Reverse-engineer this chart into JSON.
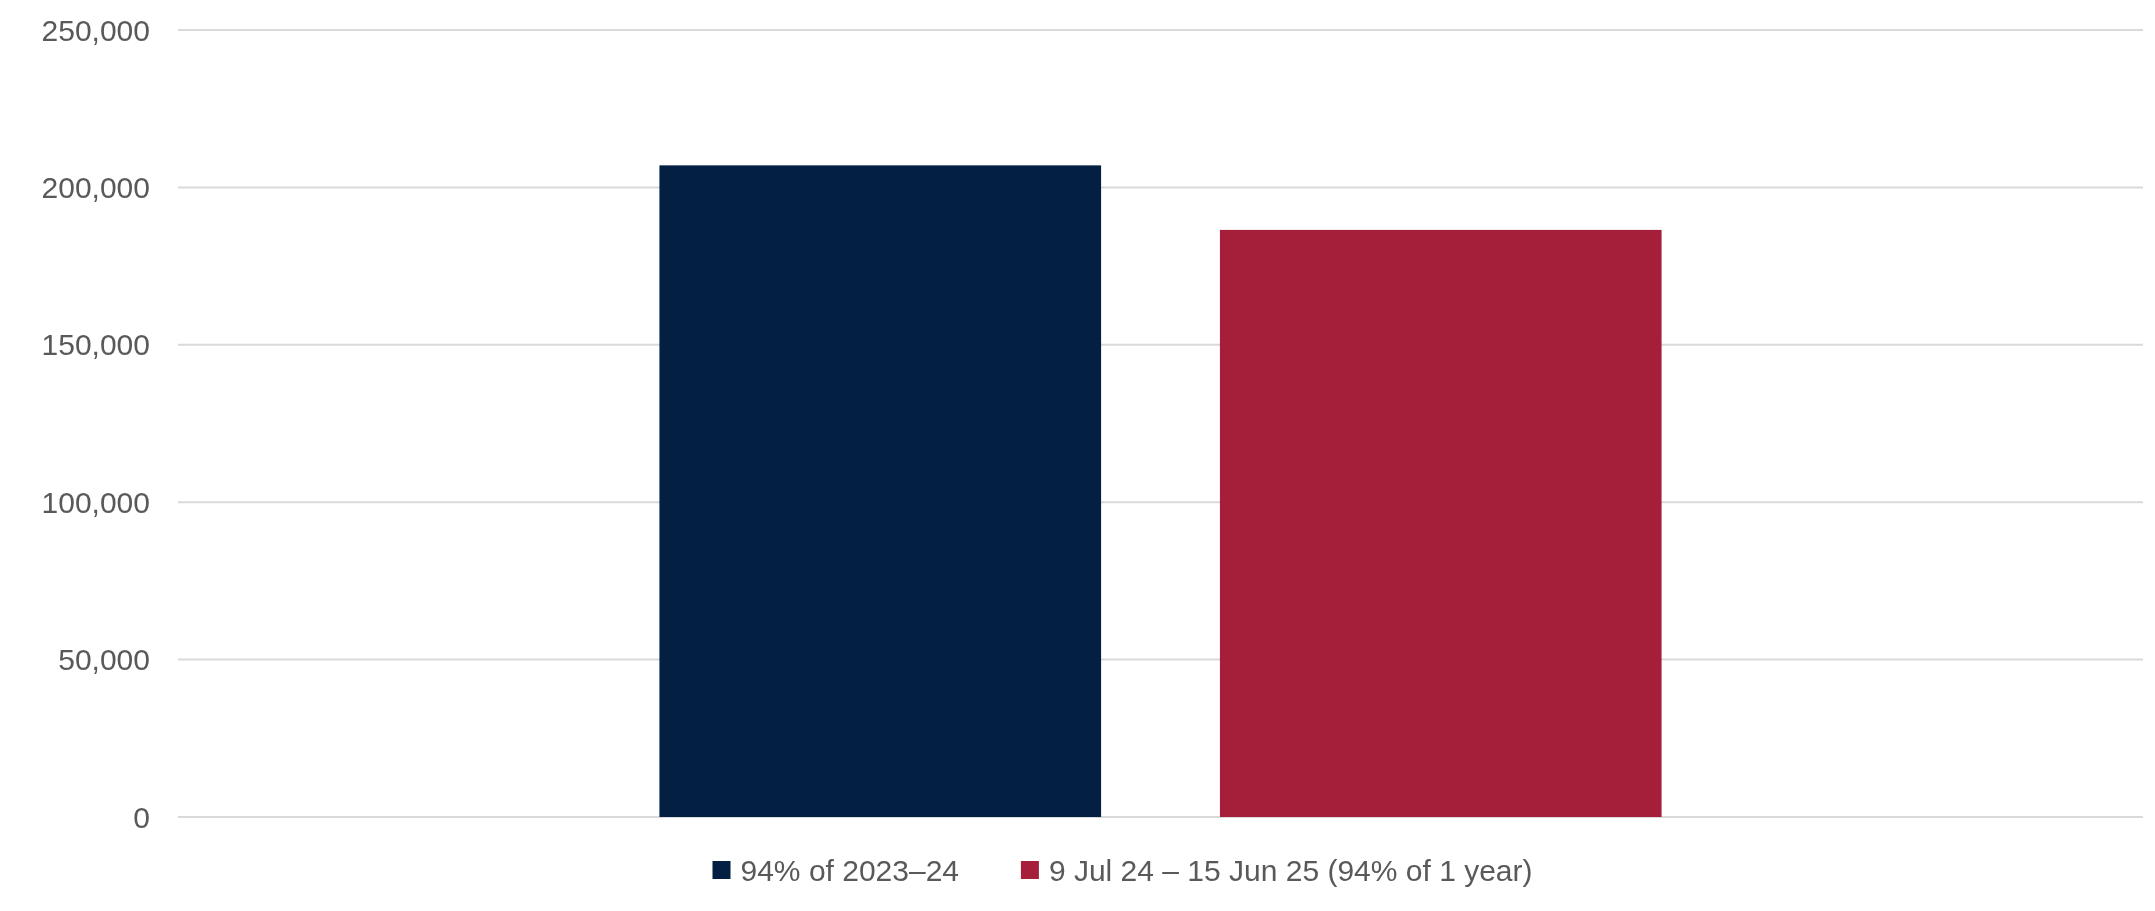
{
  "chart_data": {
    "type": "bar",
    "categories": [
      null
    ],
    "series": [
      {
        "name": "94% of 2023–24",
        "color": "#031f42",
        "values": [
          207000
        ]
      },
      {
        "name": "9 Jul 24 – 15 Jun 25 (94% of 1 year)",
        "color": "#a51f3a",
        "values": [
          186500
        ]
      }
    ],
    "ylim": [
      0,
      250000
    ],
    "yticks": [
      {
        "value": 0,
        "label": "0"
      },
      {
        "value": 50000,
        "label": "50,000"
      },
      {
        "value": 100000,
        "label": "100,000"
      },
      {
        "value": 150000,
        "label": "150,000"
      },
      {
        "value": 200000,
        "label": "200,000"
      },
      {
        "value": 250000,
        "label": "250,000"
      }
    ],
    "grid": "y",
    "legend": "bottom"
  }
}
